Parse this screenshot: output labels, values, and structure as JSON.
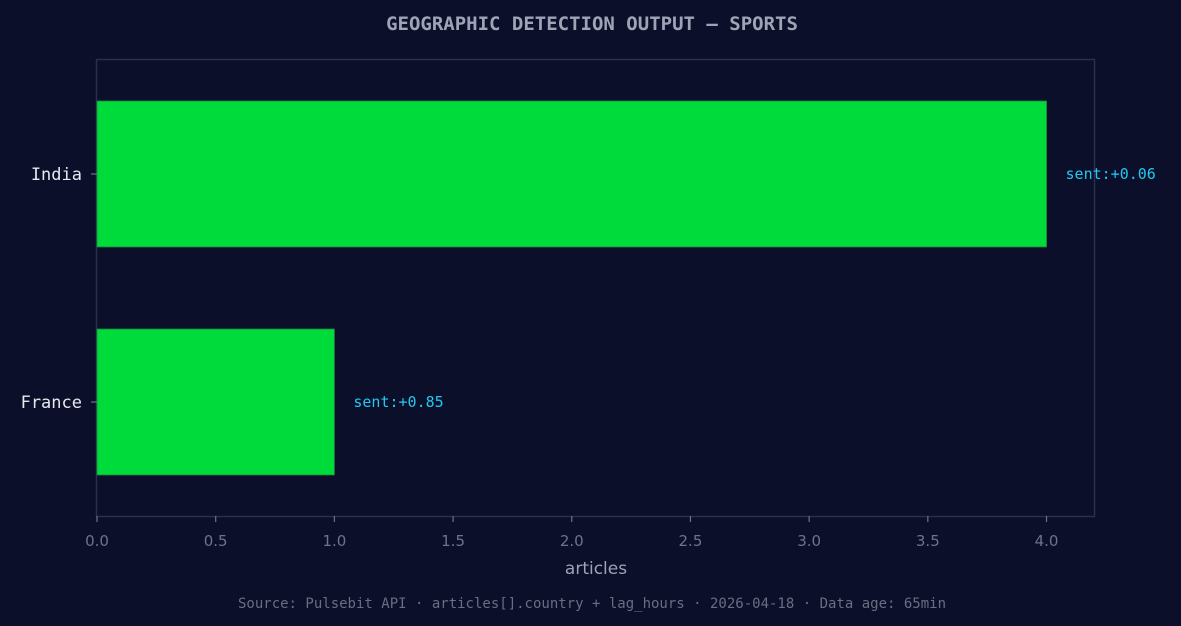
{
  "chart_data": {
    "type": "bar",
    "orientation": "horizontal",
    "title": "GEOGRAPHIC DETECTION OUTPUT — SPORTS",
    "xlabel": "articles",
    "ylabel": "",
    "xlim": [
      0,
      4.2
    ],
    "xticks": [
      "0.0",
      "0.5",
      "1.0",
      "1.5",
      "2.0",
      "2.5",
      "3.0",
      "3.5",
      "4.0"
    ],
    "categories": [
      "India",
      "France"
    ],
    "values": [
      4,
      1
    ],
    "annotations": [
      "sent:+0.06",
      "sent:+0.85"
    ],
    "bar_color": "#00db3c",
    "annotation_color": "#22c8f2",
    "grid": false,
    "source": "Source: Pulsebit API · articles[].country + lag_hours · 2026-04-18 · Data age: 65min"
  }
}
